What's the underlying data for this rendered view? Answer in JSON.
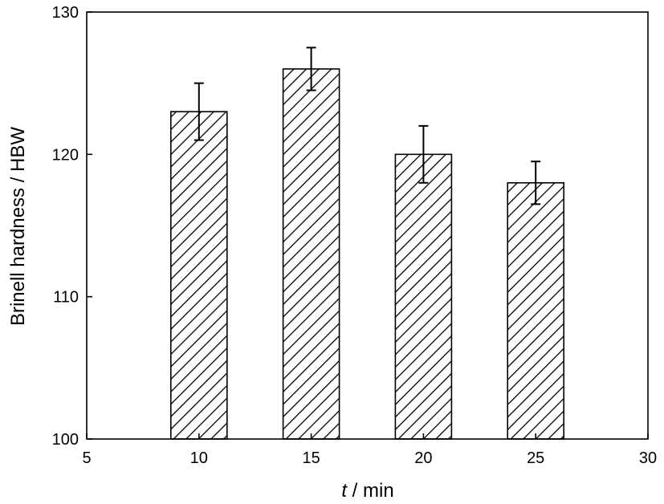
{
  "chart_data": {
    "type": "bar",
    "x": [
      10,
      15,
      20,
      25
    ],
    "values": [
      123,
      126,
      120,
      118
    ],
    "error_low": [
      121,
      124.5,
      118,
      116.5
    ],
    "error_high": [
      125,
      127.5,
      122,
      119.5
    ],
    "xlim": [
      5,
      30
    ],
    "ylim": [
      100,
      130
    ],
    "xticks": [
      5,
      10,
      15,
      20,
      25,
      30
    ],
    "yticks": [
      100,
      110,
      120,
      130
    ],
    "xlabel_var": "t",
    "xlabel_unit": " / min",
    "ylabel": "Brinell hardness / HBW",
    "title": "",
    "grid": false,
    "bar_fill": "diagonal-hatch",
    "bar_color": "#000000",
    "background": "#ffffff"
  }
}
